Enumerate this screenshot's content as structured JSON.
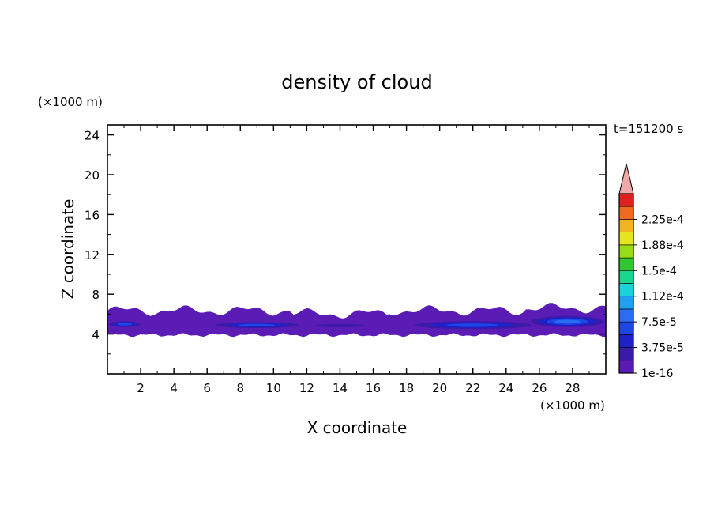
{
  "chart_data": {
    "type": "heatmap",
    "title": "density of cloud",
    "xlabel": "X coordinate",
    "ylabel": "Z coordinate",
    "x_unit": "(×1000 m)",
    "y_unit": "(×1000 m)",
    "time_label": "t=151200 s",
    "xlim": [
      0,
      30
    ],
    "ylim": [
      0,
      25
    ],
    "x_ticks": [
      2,
      4,
      6,
      8,
      10,
      12,
      14,
      16,
      18,
      20,
      22,
      24,
      26,
      28
    ],
    "y_ticks": [
      4,
      8,
      12,
      16,
      20,
      24
    ],
    "colorbar": {
      "levels": [
        1e-16,
        1.875e-05,
        3.75e-05,
        5.625e-05,
        7.5e-05,
        9.375e-05,
        0.000112,
        0.000131,
        0.00015,
        0.000169,
        0.000188,
        0.000206,
        0.000225,
        0.000244
      ],
      "labels": [
        "1e-16",
        "3.75e-5",
        "7.5e-5",
        "1.12e-4",
        "1.5e-4",
        "1.88e-4",
        "2.25e-4"
      ],
      "colors": [
        "#5a1cb4",
        "#3a1aa8",
        "#2020c8",
        "#1e46e6",
        "#2a6cf5",
        "#1fa0f2",
        "#18d4d8",
        "#18d890",
        "#30c830",
        "#98dc18",
        "#e6e61e",
        "#f2b41e",
        "#f06a1e",
        "#e02020"
      ],
      "extend_color": "#f2a8a8"
    },
    "cloud_layer": {
      "z_bottom": 3.9,
      "z_top_approx": 6.6,
      "note_values": "background density ~1e-16 throughout layer; maxima ~5e-5 to 7.5e-5 near z=5 km",
      "high_density_patches": [
        {
          "x": [
            0.1,
            2.0
          ],
          "z": [
            4.7,
            5.3
          ],
          "level": 3
        },
        {
          "x": [
            6.5,
            11.5
          ],
          "z": [
            4.6,
            5.2
          ],
          "level": 3
        },
        {
          "x": [
            12.5,
            15.5
          ],
          "z": [
            4.7,
            5.0
          ],
          "level": 1
        },
        {
          "x": [
            18.5,
            25.5
          ],
          "z": [
            4.5,
            5.3
          ],
          "level": 3
        },
        {
          "x": [
            25.5,
            29.9
          ],
          "z": [
            4.7,
            5.8
          ],
          "level": 4
        }
      ]
    }
  }
}
